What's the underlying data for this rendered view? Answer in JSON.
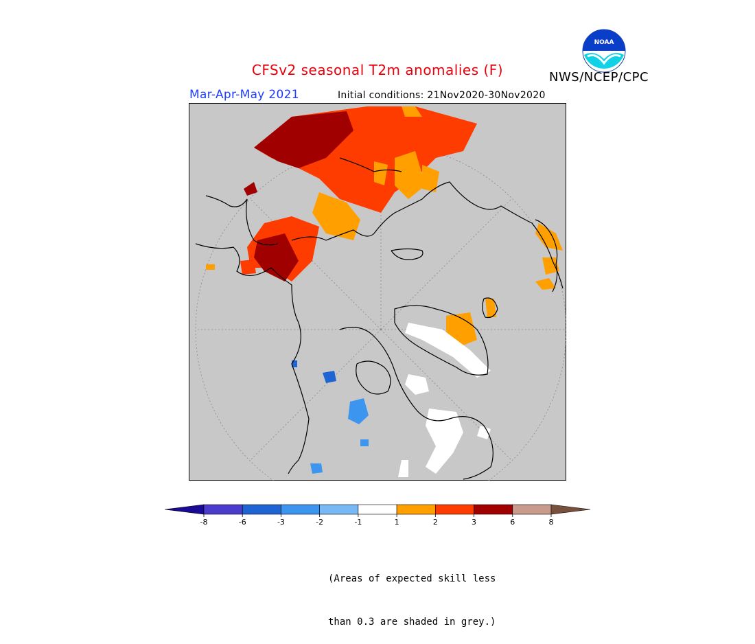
{
  "title": "CFSv2 seasonal T2m anomalies (F)",
  "agency": "NWS/NCEP/CPC",
  "season": "Mar-Apr-May 2021",
  "initial_conditions": "Initial conditions: 21Nov2020-30Nov2020",
  "note": {
    "line1": "(Areas of expected skill less",
    "line2": "than 0.3 are shaded in grey.)"
  },
  "logo_label": "NOAA",
  "colors": {
    "title": "#e8000b",
    "season": "#1e3cff",
    "background_grey": "#c8c8c8",
    "cool": [
      "#1a0a96",
      "#4b3ccc",
      "#1e64d2",
      "#3c96f0",
      "#78b9f5"
    ],
    "neutral": "#ffffff",
    "warm": [
      "#ffa000",
      "#ff3c00",
      "#a00000",
      "#c89b8c",
      "#78503c"
    ]
  },
  "legend": {
    "ticks": [
      "-8",
      "-6",
      "-3",
      "-2",
      "-1",
      "1",
      "2",
      "3",
      "6",
      "8"
    ],
    "bins": [
      "#1a0a96",
      "#4b3ccc",
      "#1e64d2",
      "#3c96f0",
      "#78b9f5",
      "#ffffff",
      "#ffa000",
      "#ff3c00",
      "#a00000",
      "#c89b8c",
      "#78503c"
    ]
  }
}
